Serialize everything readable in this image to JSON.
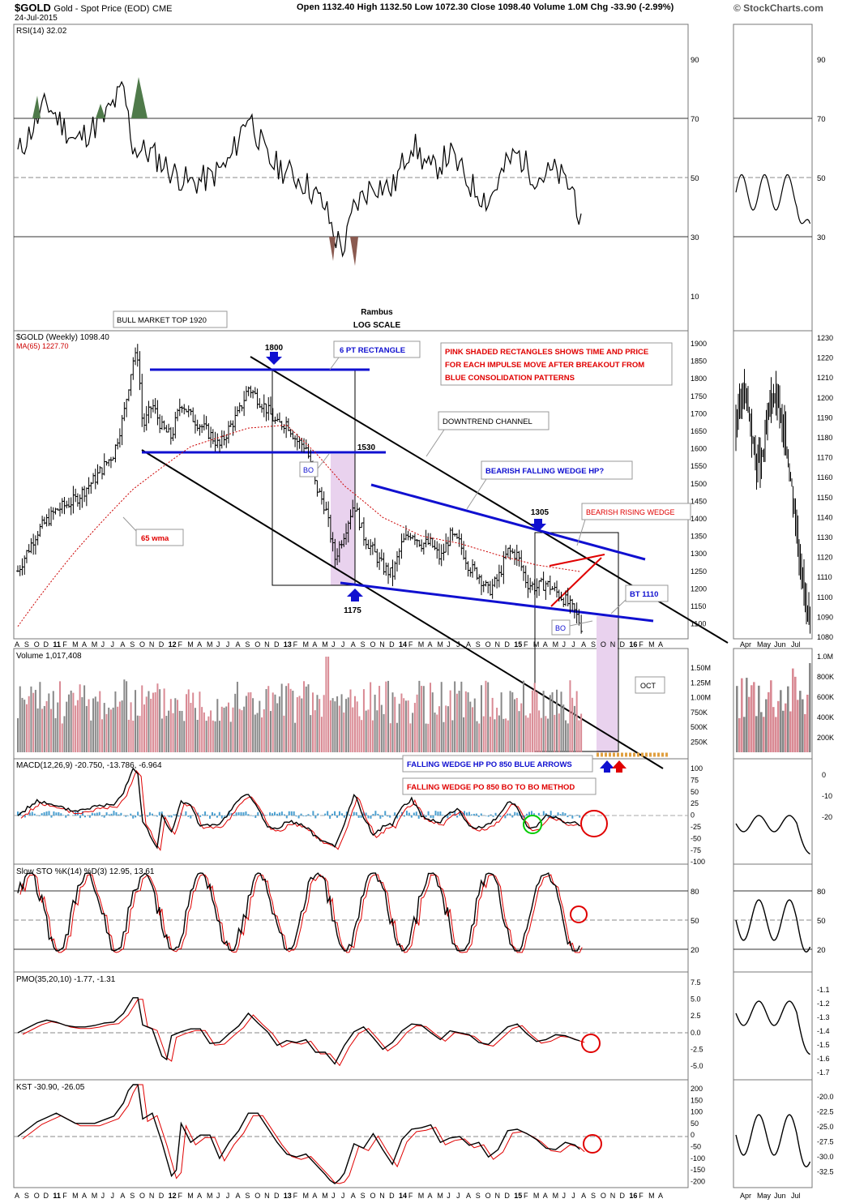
{
  "header": {
    "symbol": "$GOLD",
    "name": "Gold - Spot Price (EOD)",
    "exchange": "CME",
    "date": "24-Jul-2015",
    "ohlc": "Open 1132.40   High 1132.50   Low 1072.30   Close 1098.40   Volume 1.0M   Chg -33.90 (-2.99%)",
    "logo": "© StockCharts.com"
  },
  "titles": {
    "rsi": "RSI(14) 32.02",
    "price": "$GOLD (Weekly) 1098.40",
    "ma": "MA(65) 1227.70",
    "volume": "Volume 1,017,408",
    "macd": "MACD(12,26,9) -20.750, -13.786, -6.964",
    "sto": "Slow STO %K(14) %D(3) 12.95, 13.61",
    "pmo": "PMO(35,20,10) -1.77, -1.31",
    "kst": "KST -30.90, -26.05"
  },
  "annotations": {
    "bull_top": "BULL MARKET TOP 1920",
    "rambus": "Rambus",
    "log_scale": "LOG SCALE",
    "pink_note": [
      "PINK SHADED RECTANGLES SHOWS TIME AND PRICE",
      "FOR EACH IMPULSE MOVE AFTER BREAKOUT FROM",
      "BLUE CONSOLIDATION PATTERNS"
    ],
    "six_pt": "6 PT RECTANGLE",
    "downtrend": "DOWNTREND CHANNEL",
    "bearish_falling": "BEARISH FALLING WEDGE HP?",
    "bearish_rising": "BEARISH RISING WEDGE",
    "wma": "65 wma",
    "bt": "BT 1110",
    "oct": "OCT",
    "bo1": "BO",
    "bo2": "BO",
    "l1800": "1800",
    "l1530": "1530",
    "l1175": "1175",
    "l1305": "1305",
    "fw_blue": "FALLING WEDGE HP PO 850 BLUE ARROWS",
    "fw_red": "FALLING WEDGE PO 850 BO TO BO METHOD"
  },
  "colors": {
    "up": "#000000",
    "ma": "#cc0000",
    "blue_line": "#1010d0",
    "pink": "#e9d2ee",
    "hist": "#4a9fd0",
    "vol_up": "#888888",
    "vol_dn": "#d98a94"
  },
  "axes": {
    "x_months": [
      "A",
      "S",
      "O",
      "D",
      "11",
      "F",
      "M",
      "A",
      "M",
      "J",
      "J",
      "A",
      "S",
      "O",
      "N",
      "D",
      "12",
      "F",
      "M",
      "A",
      "M",
      "J",
      "J",
      "A",
      "S",
      "O",
      "N",
      "D",
      "13",
      "F",
      "M",
      "A",
      "M",
      "J",
      "J",
      "A",
      "S",
      "O",
      "N",
      "D",
      "14",
      "F",
      "M",
      "A",
      "M",
      "J",
      "J",
      "A",
      "S",
      "O",
      "N",
      "D",
      "15",
      "F",
      "M",
      "A",
      "M",
      "J",
      "J",
      "A",
      "S",
      "O",
      "N",
      "D",
      "16",
      "F",
      "M",
      "A"
    ],
    "x_months_small": [
      "Apr",
      "May",
      "Jun",
      "Jul"
    ],
    "rsi_ticks": [
      "90",
      "70",
      "50",
      "30",
      "10"
    ],
    "price_ticks": [
      "1900",
      "1850",
      "1800",
      "1750",
      "1700",
      "1650",
      "1600",
      "1550",
      "1500",
      "1450",
      "1400",
      "1350",
      "1300",
      "1250",
      "1200",
      "1150",
      "1100"
    ],
    "price_ticks_small": [
      "1230",
      "1220",
      "1210",
      "1200",
      "1190",
      "1180",
      "1170",
      "1160",
      "1150",
      "1140",
      "1130",
      "1120",
      "1110",
      "1100",
      "1090",
      "1080"
    ],
    "vol_ticks": [
      "1.50M",
      "1.25M",
      "1.00M",
      "750K",
      "500K",
      "250K"
    ],
    "vol_ticks_small": [
      "1.0M",
      "800K",
      "600K",
      "400K",
      "200K"
    ],
    "macd_ticks": [
      "100",
      "75",
      "50",
      "25",
      "0",
      "-25",
      "-50",
      "-75",
      "-100"
    ],
    "macd_ticks_small": [
      "0",
      "-10",
      "-20"
    ],
    "sto_ticks": [
      "80",
      "50",
      "20"
    ],
    "pmo_ticks": [
      "7.5",
      "5.0",
      "2.5",
      "0.0",
      "-2.5",
      "-5.0"
    ],
    "pmo_ticks_small": [
      "-1.1",
      "-1.2",
      "-1.3",
      "-1.4",
      "-1.5",
      "-1.6",
      "-1.7"
    ],
    "kst_ticks": [
      "200",
      "150",
      "100",
      "50",
      "0",
      "-50",
      "-100",
      "-150",
      "-200"
    ],
    "kst_ticks_small": [
      "-20.0",
      "-22.5",
      "-25.0",
      "-27.5",
      "-30.0",
      "-32.5"
    ]
  },
  "chart_data": {
    "type": "line",
    "x_unit": "month index (0 = Aug 2010)",
    "price": {
      "name": "$GOLD (Weekly)",
      "scale": "log",
      "ylim": [
        1080,
        1950
      ],
      "points": [
        [
          0,
          1230
        ],
        [
          2,
          1330
        ],
        [
          4,
          1390
        ],
        [
          6,
          1420
        ],
        [
          8,
          1480
        ],
        [
          10,
          1560
        ],
        [
          11,
          1680
        ],
        [
          12,
          1880
        ],
        [
          12.5,
          1900
        ],
        [
          13,
          1640
        ],
        [
          14,
          1720
        ],
        [
          15,
          1640
        ],
        [
          16,
          1610
        ],
        [
          17,
          1730
        ],
        [
          18,
          1680
        ],
        [
          19,
          1650
        ],
        [
          20,
          1620
        ],
        [
          21,
          1580
        ],
        [
          22,
          1640
        ],
        [
          23,
          1690
        ],
        [
          24,
          1780
        ],
        [
          25,
          1740
        ],
        [
          26,
          1700
        ],
        [
          27,
          1650
        ],
        [
          28,
          1660
        ],
        [
          29,
          1600
        ],
        [
          30,
          1580
        ],
        [
          31,
          1460
        ],
        [
          32,
          1400
        ],
        [
          33,
          1260
        ],
        [
          34,
          1330
        ],
        [
          35,
          1410
        ],
        [
          36,
          1320
        ],
        [
          37,
          1280
        ],
        [
          38,
          1240
        ],
        [
          39,
          1220
        ],
        [
          40,
          1300
        ],
        [
          41,
          1330
        ],
        [
          42,
          1300
        ],
        [
          43,
          1300
        ],
        [
          44,
          1260
        ],
        [
          45,
          1320
        ],
        [
          46,
          1300
        ],
        [
          47,
          1240
        ],
        [
          48,
          1220
        ],
        [
          49,
          1180
        ],
        [
          50,
          1210
        ],
        [
          51,
          1280
        ],
        [
          52,
          1270
        ],
        [
          53,
          1200
        ],
        [
          54,
          1190
        ],
        [
          55,
          1200
        ],
        [
          56,
          1180
        ],
        [
          57,
          1160
        ],
        [
          58,
          1132
        ],
        [
          58.7,
          1098
        ]
      ]
    },
    "ma65": {
      "name": "MA(65)",
      "points": [
        [
          0,
          1100
        ],
        [
          6,
          1280
        ],
        [
          12,
          1450
        ],
        [
          18,
          1580
        ],
        [
          24,
          1640
        ],
        [
          28,
          1650
        ],
        [
          31,
          1560
        ],
        [
          34,
          1460
        ],
        [
          38,
          1370
        ],
        [
          42,
          1320
        ],
        [
          46,
          1300
        ],
        [
          50,
          1270
        ],
        [
          54,
          1245
        ],
        [
          58.7,
          1228
        ]
      ]
    },
    "rsi": {
      "value": 32.02,
      "points": [
        [
          0,
          58
        ],
        [
          3,
          75
        ],
        [
          6,
          62
        ],
        [
          9,
          70
        ],
        [
          11,
          80
        ],
        [
          12,
          60
        ],
        [
          14,
          58
        ],
        [
          16,
          52
        ],
        [
          18,
          48
        ],
        [
          20,
          50
        ],
        [
          22,
          55
        ],
        [
          24,
          72
        ],
        [
          26,
          56
        ],
        [
          28,
          52
        ],
        [
          30,
          48
        ],
        [
          32,
          40
        ],
        [
          33,
          30
        ],
        [
          34,
          26
        ],
        [
          35,
          40
        ],
        [
          37,
          48
        ],
        [
          39,
          46
        ],
        [
          41,
          62
        ],
        [
          43,
          52
        ],
        [
          45,
          58
        ],
        [
          47,
          48
        ],
        [
          49,
          42
        ],
        [
          51,
          55
        ],
        [
          52,
          58
        ],
        [
          54,
          50
        ],
        [
          56,
          52
        ],
        [
          58,
          45
        ],
        [
          58.7,
          32
        ]
      ]
    },
    "volume": {
      "latest": 1017408
    },
    "macd": {
      "value": -20.75,
      "signal": -13.786,
      "hist": -6.964
    },
    "slow_sto": {
      "k": 12.95,
      "d": 13.61
    },
    "pmo": {
      "value": -1.77,
      "signal": -1.31
    },
    "kst": {
      "value": -30.9,
      "signal": -26.05
    }
  }
}
